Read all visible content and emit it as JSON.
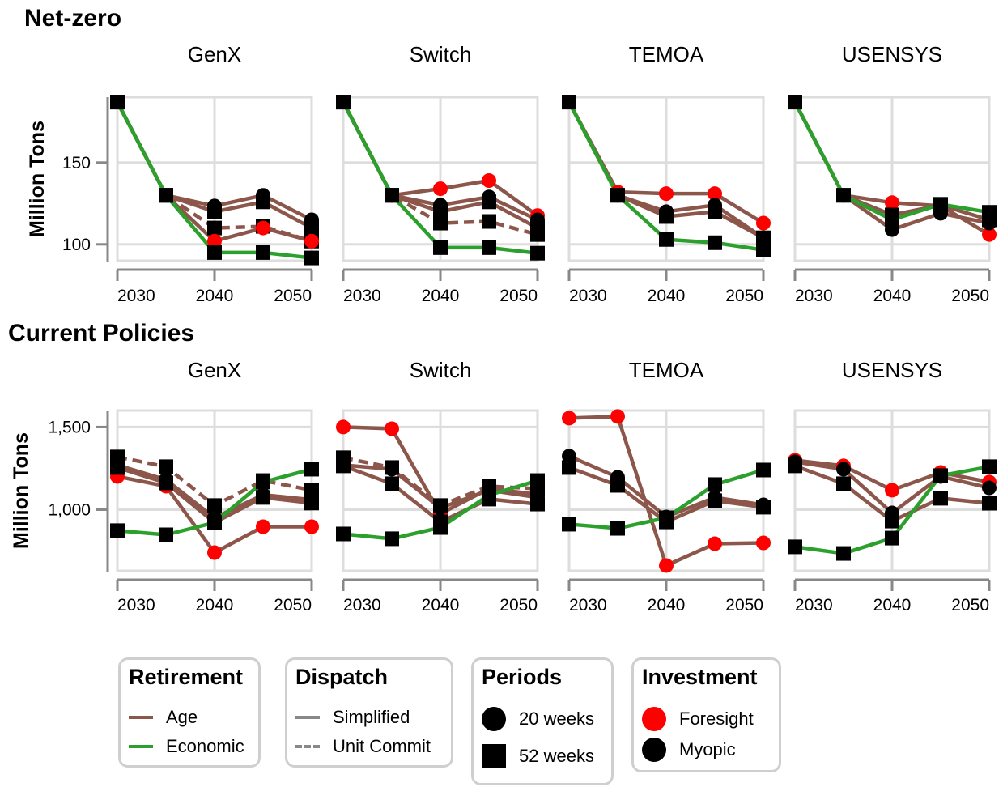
{
  "chart_data": {
    "type": "line",
    "x": [
      2030,
      2035,
      2040,
      2045,
      2050
    ],
    "x_ticks": [
      "2030",
      "2040",
      "2050"
    ],
    "ylabel": "Million Tons",
    "colors": {
      "Age": "#8c564b",
      "Economic": "#2ca02c",
      "Foresight": "#ff0000",
      "Myopic": "#000000",
      "grid": "#dddddd",
      "axis": "#888888"
    },
    "rows": [
      {
        "title": "Net-zero",
        "ylim": [
          90,
          190
        ],
        "y_ticks": [
          {
            "value": 100,
            "label": "100"
          },
          {
            "value": 150,
            "label": "150"
          }
        ],
        "facets": [
          {
            "title": "GenX",
            "series": [
              {
                "retirement": "Age",
                "dispatch": "Simplified",
                "periods": "20 weeks",
                "investment": "Myopic",
                "values": [
                  187,
                  130,
                  123.5,
                  130,
                  115
                ]
              },
              {
                "retirement": "Age",
                "dispatch": "Simplified",
                "periods": "52 weeks",
                "investment": "Myopic",
                "values": [
                  187,
                  130,
                  120,
                  126,
                  110
                ]
              },
              {
                "retirement": "Age",
                "dispatch": "Unit Commit",
                "periods": "52 weeks",
                "investment": "Myopic",
                "values": [
                  187,
                  130,
                  110,
                  111,
                  102
                ]
              },
              {
                "retirement": "Age",
                "dispatch": "Simplified",
                "periods": "20 weeks",
                "investment": "Foresight",
                "values": [
                  187,
                  130,
                  102,
                  110,
                  102
                ]
              },
              {
                "retirement": "Economic",
                "dispatch": "Simplified",
                "periods": "52 weeks",
                "investment": "Myopic",
                "values": [
                  187,
                  130,
                  95,
                  95,
                  91.7
                ]
              }
            ]
          },
          {
            "title": "Switch",
            "series": [
              {
                "retirement": "Age",
                "dispatch": "Simplified",
                "periods": "20 weeks",
                "investment": "Foresight",
                "values": [
                  187,
                  130,
                  134,
                  139,
                  117.6
                ]
              },
              {
                "retirement": "Age",
                "dispatch": "Simplified",
                "periods": "20 weeks",
                "investment": "Myopic",
                "values": [
                  187,
                  130,
                  124,
                  129,
                  115
                ]
              },
              {
                "retirement": "Age",
                "dispatch": "Simplified",
                "periods": "52 weeks",
                "investment": "Myopic",
                "values": [
                  187,
                  130,
                  120,
                  126,
                  110
                ]
              },
              {
                "retirement": "Age",
                "dispatch": "Unit Commit",
                "periods": "52 weeks",
                "investment": "Myopic",
                "values": [
                  187,
                  130,
                  113,
                  114,
                  106
                ]
              },
              {
                "retirement": "Economic",
                "dispatch": "Simplified",
                "periods": "52 weeks",
                "investment": "Myopic",
                "values": [
                  187,
                  130,
                  98,
                  98,
                  94.6
                ]
              }
            ]
          },
          {
            "title": "TEMOA",
            "series": [
              {
                "retirement": "Age",
                "dispatch": "Simplified",
                "periods": "20 weeks",
                "investment": "Foresight",
                "values": [
                  187,
                  132,
                  131,
                  131,
                  113
                ]
              },
              {
                "retirement": "Age",
                "dispatch": "Simplified",
                "periods": "20 weeks",
                "investment": "Myopic",
                "values": [
                  187,
                  130,
                  120,
                  124,
                  104
                ]
              },
              {
                "retirement": "Age",
                "dispatch": "Simplified",
                "periods": "52 weeks",
                "investment": "Myopic",
                "values": [
                  187,
                  130,
                  117,
                  120,
                  104
                ]
              },
              {
                "retirement": "Economic",
                "dispatch": "Simplified",
                "periods": "52 weeks",
                "investment": "Myopic",
                "values": [
                  187,
                  130,
                  103,
                  101,
                  96.6
                ]
              }
            ]
          },
          {
            "title": "USENSYS",
            "series": [
              {
                "retirement": "Age",
                "dispatch": "Simplified",
                "periods": "20 weeks",
                "investment": "Foresight",
                "values": [
                  187,
                  130,
                  125.5,
                  123.5,
                  106
                ]
              },
              {
                "retirement": "Age",
                "dispatch": "Simplified",
                "periods": "20 weeks",
                "investment": "Myopic",
                "values": [
                  187,
                  130,
                  109,
                  119,
                  113
                ]
              },
              {
                "retirement": "Age",
                "dispatch": "Simplified",
                "periods": "52 weeks",
                "investment": "Myopic",
                "values": [
                  187,
                  130,
                  118,
                  124,
                  115
                ]
              },
              {
                "retirement": "Economic",
                "dispatch": "Simplified",
                "periods": "52 weeks",
                "investment": "Myopic",
                "values": [
                  187,
                  130,
                  115,
                  124.5,
                  119.6
                ]
              }
            ]
          }
        ]
      },
      {
        "title": "Current Policies",
        "ylim": [
          630,
          1600
        ],
        "y_ticks": [
          {
            "value": 1000,
            "label": "1,000"
          },
          {
            "value": 1500,
            "label": "1,500"
          }
        ],
        "facets": [
          {
            "title": "GenX",
            "series": [
              {
                "retirement": "Age",
                "dispatch": "Simplified",
                "periods": "20 weeks",
                "investment": "Foresight",
                "values": [
                  1201,
                  1142,
                  740,
                  897,
                  897
                ]
              },
              {
                "retirement": "Age",
                "dispatch": "Unit Commit",
                "periods": "52 weeks",
                "investment": "Myopic",
                "values": [
                  1319,
                  1260,
                  1025,
                  1176,
                  1118
                ]
              },
              {
                "retirement": "Age",
                "dispatch": "Simplified",
                "periods": "20 weeks",
                "investment": "Myopic",
                "values": [
                  1270,
                  1181,
                  951,
                  1090,
                  1060
                ]
              },
              {
                "retirement": "Age",
                "dispatch": "Simplified",
                "periods": "52 weeks",
                "investment": "Myopic",
                "values": [
                  1255,
                  1162,
                  922,
                  1074,
                  1040
                ]
              },
              {
                "retirement": "Economic",
                "dispatch": "Simplified",
                "periods": "52 weeks",
                "investment": "Myopic",
                "values": [
                  873,
                  848,
                  922,
                  1167,
                  1245
                ]
              }
            ]
          },
          {
            "title": "Switch",
            "series": [
              {
                "retirement": "Age",
                "dispatch": "Simplified",
                "periods": "20 weeks",
                "investment": "Foresight",
                "values": [
                  1500,
                  1490,
                  975,
                  1127,
                  1093
                ]
              },
              {
                "retirement": "Age",
                "dispatch": "Unit Commit",
                "periods": "52 weeks",
                "investment": "Myopic",
                "values": [
                  1314,
                  1255,
                  1025,
                  1142,
                  1127
                ]
              },
              {
                "retirement": "Age",
                "dispatch": "Simplified",
                "periods": "20 weeks",
                "investment": "Myopic",
                "values": [
                  1270,
                  1245,
                  1010,
                  1118,
                  1074
                ]
              },
              {
                "retirement": "Age",
                "dispatch": "Simplified",
                "periods": "52 weeks",
                "investment": "Myopic",
                "values": [
                  1265,
                  1157,
                  926,
                  1064,
                  1034
                ]
              },
              {
                "retirement": "Economic",
                "dispatch": "Simplified",
                "periods": "52 weeks",
                "investment": "Myopic",
                "values": [
                  853,
                  824,
                  892,
                  1088,
                  1176
                ]
              }
            ]
          },
          {
            "title": "TEMOA",
            "series": [
              {
                "retirement": "Age",
                "dispatch": "Simplified",
                "periods": "20 weeks",
                "investment": "Foresight",
                "values": [
                  1554,
                  1564,
                  662,
                  794,
                  799
                ]
              },
              {
                "retirement": "Age",
                "dispatch": "Simplified",
                "periods": "20 weeks",
                "investment": "Myopic",
                "values": [
                  1324,
                  1196,
                  956,
                  1074,
                  1029
                ]
              },
              {
                "retirement": "Age",
                "dispatch": "Simplified",
                "periods": "52 weeks",
                "investment": "Myopic",
                "values": [
                  1255,
                  1147,
                  926,
                  1054,
                  1015
                ]
              },
              {
                "retirement": "Economic",
                "dispatch": "Simplified",
                "periods": "52 weeks",
                "investment": "Myopic",
                "values": [
                  912,
                  887,
                  951,
                  1152,
                  1240
                ]
              }
            ]
          },
          {
            "title": "USENSYS",
            "series": [
              {
                "retirement": "Age",
                "dispatch": "Simplified",
                "periods": "20 weeks",
                "investment": "Foresight",
                "values": [
                  1299,
                  1265,
                  1118,
                  1225,
                  1167
                ]
              },
              {
                "retirement": "Age",
                "dispatch": "Simplified",
                "periods": "20 weeks",
                "investment": "Myopic",
                "values": [
                  1289,
                  1245,
                  980,
                  1201,
                  1132
                ]
              },
              {
                "retirement": "Age",
                "dispatch": "Simplified",
                "periods": "52 weeks",
                "investment": "Myopic",
                "values": [
                  1265,
                  1157,
                  931,
                  1069,
                  1039
                ]
              },
              {
                "retirement": "Economic",
                "dispatch": "Simplified",
                "periods": "52 weeks",
                "investment": "Myopic",
                "values": [
                  775,
                  735,
                  828,
                  1206,
                  1260
                ]
              }
            ]
          }
        ]
      }
    ],
    "legend_placement": "bottom"
  },
  "legend": {
    "retirement": {
      "title": "Retirement",
      "items": [
        {
          "label": "Age",
          "color": "#8c564b"
        },
        {
          "label": "Economic",
          "color": "#2ca02c"
        }
      ]
    },
    "dispatch": {
      "title": "Dispatch",
      "items": [
        {
          "label": "Simplified",
          "style": "solid"
        },
        {
          "label": "Unit Commit",
          "style": "dashed"
        }
      ]
    },
    "periods": {
      "title": "Periods",
      "items": [
        {
          "label": "20 weeks",
          "shape": "circle"
        },
        {
          "label": "52 weeks",
          "shape": "square"
        }
      ]
    },
    "investment": {
      "title": "Investment",
      "items": [
        {
          "label": "Foresight",
          "color": "#ff0000"
        },
        {
          "label": "Myopic",
          "color": "#000000"
        }
      ]
    }
  }
}
